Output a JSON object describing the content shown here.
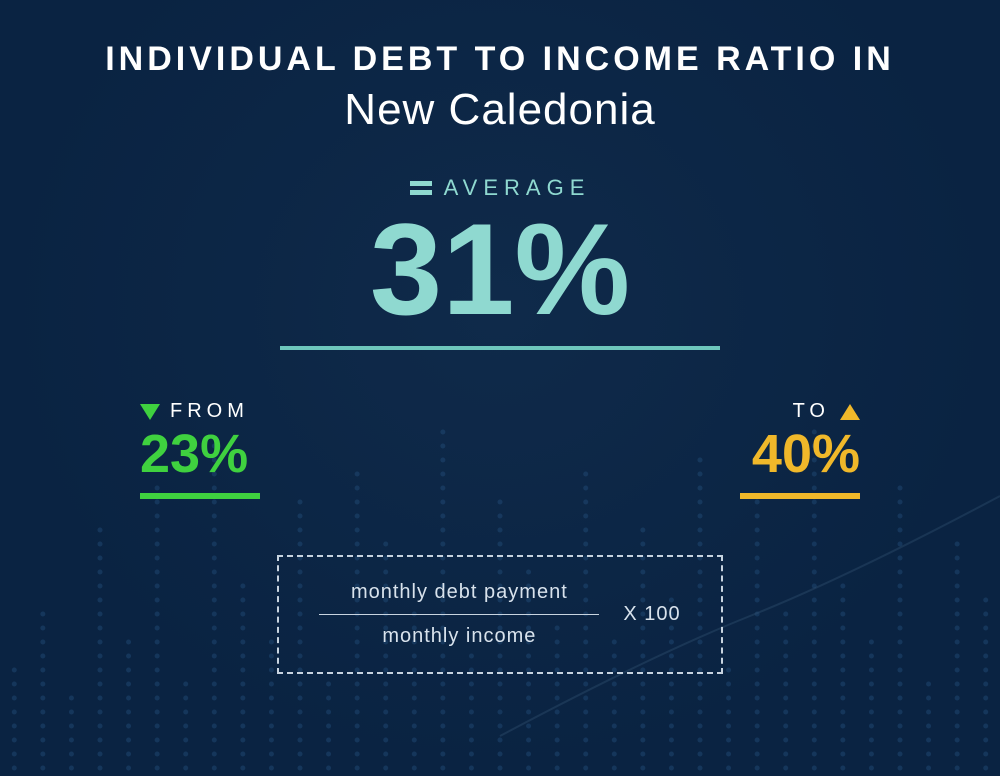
{
  "background": {
    "gradient_from": "#0f2a4a",
    "gradient_to": "#0a2342",
    "dot_color": "#2a5a8a"
  },
  "title": {
    "line1": "INDIVIDUAL  DEBT  TO  INCOME RATIO  IN",
    "line2": "New Caledonia",
    "color": "#ffffff",
    "line1_fontsize": 34,
    "line2_fontsize": 44
  },
  "average": {
    "label": "AVERAGE",
    "value": "31%",
    "label_color": "#8fd9d0",
    "value_color": "#8fd9d0",
    "equals_color": "#8fd9d0",
    "underline_color": "#6ec7bc",
    "label_fontsize": 22,
    "value_fontsize": 130
  },
  "from": {
    "label": "FROM",
    "value": "23%",
    "color_label": "#ffffff",
    "color_value": "#3fd13f",
    "triangle_color": "#3fd13f",
    "underline_color": "#3fd13f",
    "label_fontsize": 20,
    "value_fontsize": 54
  },
  "to": {
    "label": "TO",
    "value": "40%",
    "color_label": "#ffffff",
    "color_value": "#f0b82a",
    "triangle_color": "#f0b82a",
    "underline_color": "#f0b82a",
    "label_fontsize": 20,
    "value_fontsize": 54
  },
  "formula": {
    "numerator": "monthly debt payment",
    "denominator": "monthly income",
    "multiplier": "X 100",
    "text_color": "#d8e2ec",
    "fontsize": 20,
    "border_color": "#c8d4e0"
  }
}
